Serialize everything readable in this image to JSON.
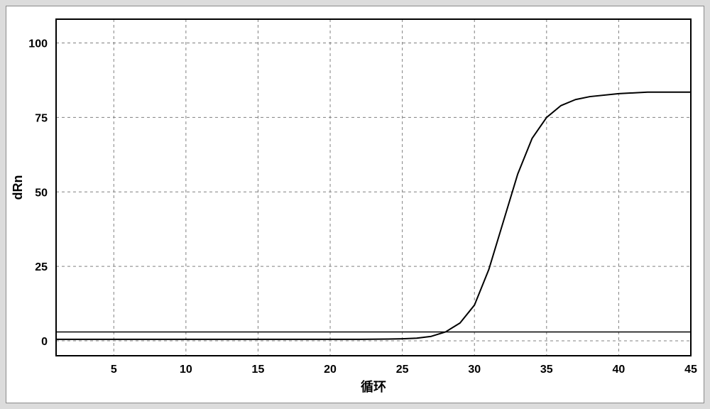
{
  "chart": {
    "type": "line",
    "background_color": "#ffffff",
    "panel_background": "#dcdcdc",
    "frame_border_color": "#8a8a8a",
    "plot_border_color": "#000000",
    "grid_color": "#808080",
    "grid_dash": "4 4",
    "curve_color": "#000000",
    "curve_width": 2,
    "threshold_color": "#000000",
    "threshold_width": 1.5,
    "threshold_value": 3,
    "xlabel": "循环",
    "ylabel": "dRn",
    "label_fontsize": 18,
    "tick_fontsize": 16,
    "xlim": [
      1,
      45
    ],
    "ylim": [
      -5,
      108
    ],
    "xticks": [
      5,
      10,
      15,
      20,
      25,
      30,
      35,
      40,
      45
    ],
    "yticks": [
      0,
      25,
      50,
      75,
      100
    ],
    "series": {
      "x": [
        1,
        5,
        10,
        15,
        20,
        22,
        24,
        25,
        26,
        27,
        28,
        29,
        30,
        31,
        32,
        33,
        34,
        35,
        36,
        37,
        38,
        40,
        42,
        45
      ],
      "y": [
        0.5,
        0.5,
        0.5,
        0.5,
        0.5,
        0.5,
        0.6,
        0.7,
        0.9,
        1.5,
        3,
        6,
        12,
        24,
        40,
        56,
        68,
        75,
        79,
        81,
        82,
        83,
        83.5,
        83.5
      ]
    }
  }
}
